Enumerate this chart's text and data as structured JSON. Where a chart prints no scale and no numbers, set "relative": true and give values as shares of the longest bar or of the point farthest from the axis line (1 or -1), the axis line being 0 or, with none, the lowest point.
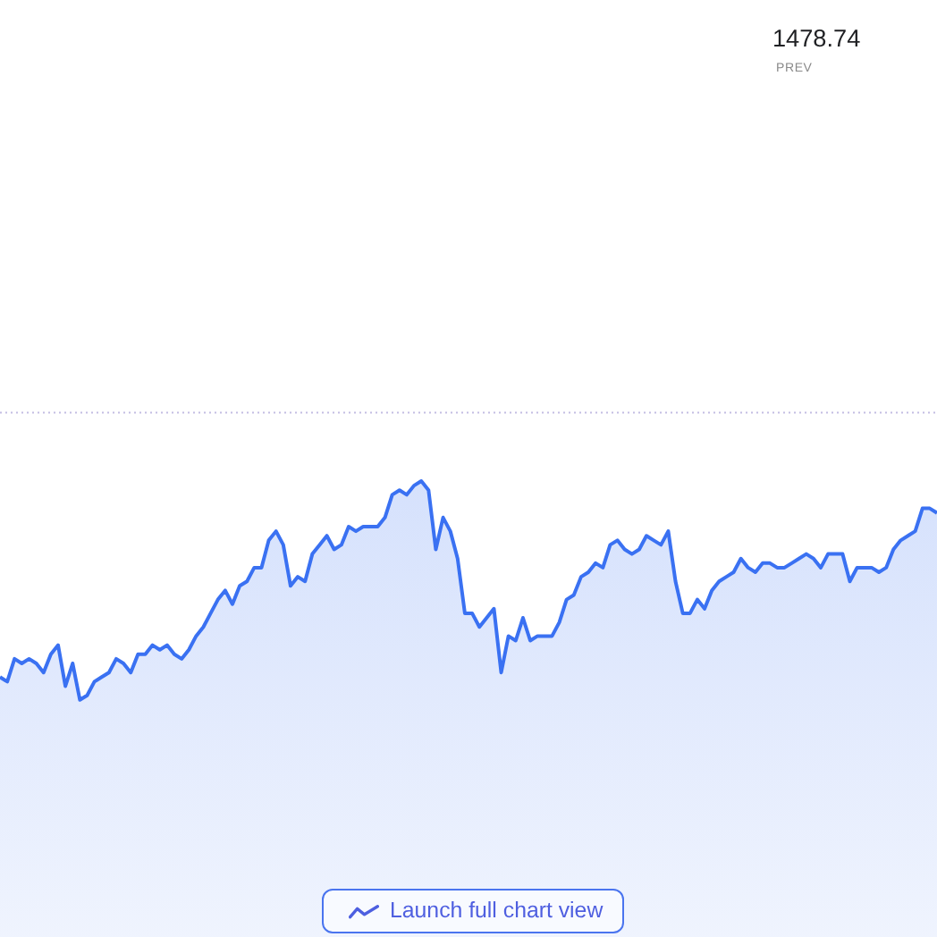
{
  "chart_data": {
    "type": "area",
    "relative": true,
    "categories": [
      null,
      null,
      null,
      null,
      null,
      null,
      null,
      null,
      null,
      null,
      null,
      null,
      null,
      null,
      null,
      null,
      null,
      null,
      null,
      null,
      null,
      null,
      null,
      null,
      null,
      null,
      null,
      null,
      null,
      null,
      null,
      null,
      null,
      null,
      null,
      null,
      null,
      null,
      null,
      null,
      null,
      null,
      null,
      null,
      null,
      null,
      null,
      null,
      null,
      null,
      null,
      null,
      null,
      null,
      null,
      null,
      null,
      null,
      null,
      null,
      null,
      null,
      null,
      null,
      null,
      null,
      null,
      null,
      null,
      null,
      null,
      null,
      null,
      null,
      null,
      null,
      null,
      null,
      null,
      null,
      null,
      null,
      null,
      null,
      null,
      null,
      null,
      null,
      null,
      null,
      null,
      null,
      null,
      null,
      null,
      null,
      null,
      null,
      null,
      null,
      null,
      null,
      null,
      null,
      null,
      null,
      null,
      null,
      null,
      null,
      null,
      null,
      null,
      null,
      null,
      null,
      null,
      null,
      null,
      null,
      null,
      null,
      null,
      null,
      null,
      null,
      null,
      null,
      null,
      null
    ],
    "series": [
      {
        "color": "#3a71f2",
        "values": [
          0.57,
          0.56,
          0.61,
          0.6,
          0.61,
          0.6,
          0.58,
          0.62,
          0.64,
          0.55,
          0.6,
          0.52,
          0.53,
          0.56,
          0.57,
          0.58,
          0.61,
          0.6,
          0.58,
          0.62,
          0.62,
          0.64,
          0.63,
          0.64,
          0.62,
          0.61,
          0.63,
          0.66,
          0.68,
          0.71,
          0.74,
          0.76,
          0.73,
          0.77,
          0.78,
          0.81,
          0.81,
          0.87,
          0.89,
          0.86,
          0.77,
          0.79,
          0.78,
          0.84,
          0.86,
          0.88,
          0.85,
          0.86,
          0.9,
          0.89,
          0.9,
          0.9,
          0.9,
          0.92,
          0.97,
          0.98,
          0.97,
          0.99,
          1,
          0.98,
          0.85,
          0.92,
          0.89,
          0.83,
          0.71,
          0.71,
          0.68,
          0.7,
          0.72,
          0.58,
          0.66,
          0.65,
          0.7,
          0.65,
          0.66,
          0.66,
          0.66,
          0.69,
          0.74,
          0.75,
          0.79,
          0.8,
          0.82,
          0.81,
          0.86,
          0.87,
          0.85,
          0.84,
          0.85,
          0.88,
          0.87,
          0.86,
          0.89,
          0.78,
          0.71,
          0.71,
          0.74,
          0.72,
          0.76,
          0.78,
          0.79,
          0.8,
          0.83,
          0.81,
          0.8,
          0.82,
          0.82,
          0.81,
          0.81,
          0.82,
          0.83,
          0.84,
          0.83,
          0.81,
          0.84,
          0.84,
          0.84,
          0.78,
          0.81,
          0.81,
          0.81,
          0.8,
          0.81,
          0.85,
          0.87,
          0.88,
          0.89,
          0.94,
          0.94,
          0.93
        ]
      }
    ],
    "ref_lines": [
      {
        "axis": "y",
        "value": 1.15,
        "color": "#c3bde3",
        "line_style": "dotted"
      }
    ],
    "annotations": [
      "1478.74",
      "PREV",
      "Launch full chart view"
    ]
  }
}
